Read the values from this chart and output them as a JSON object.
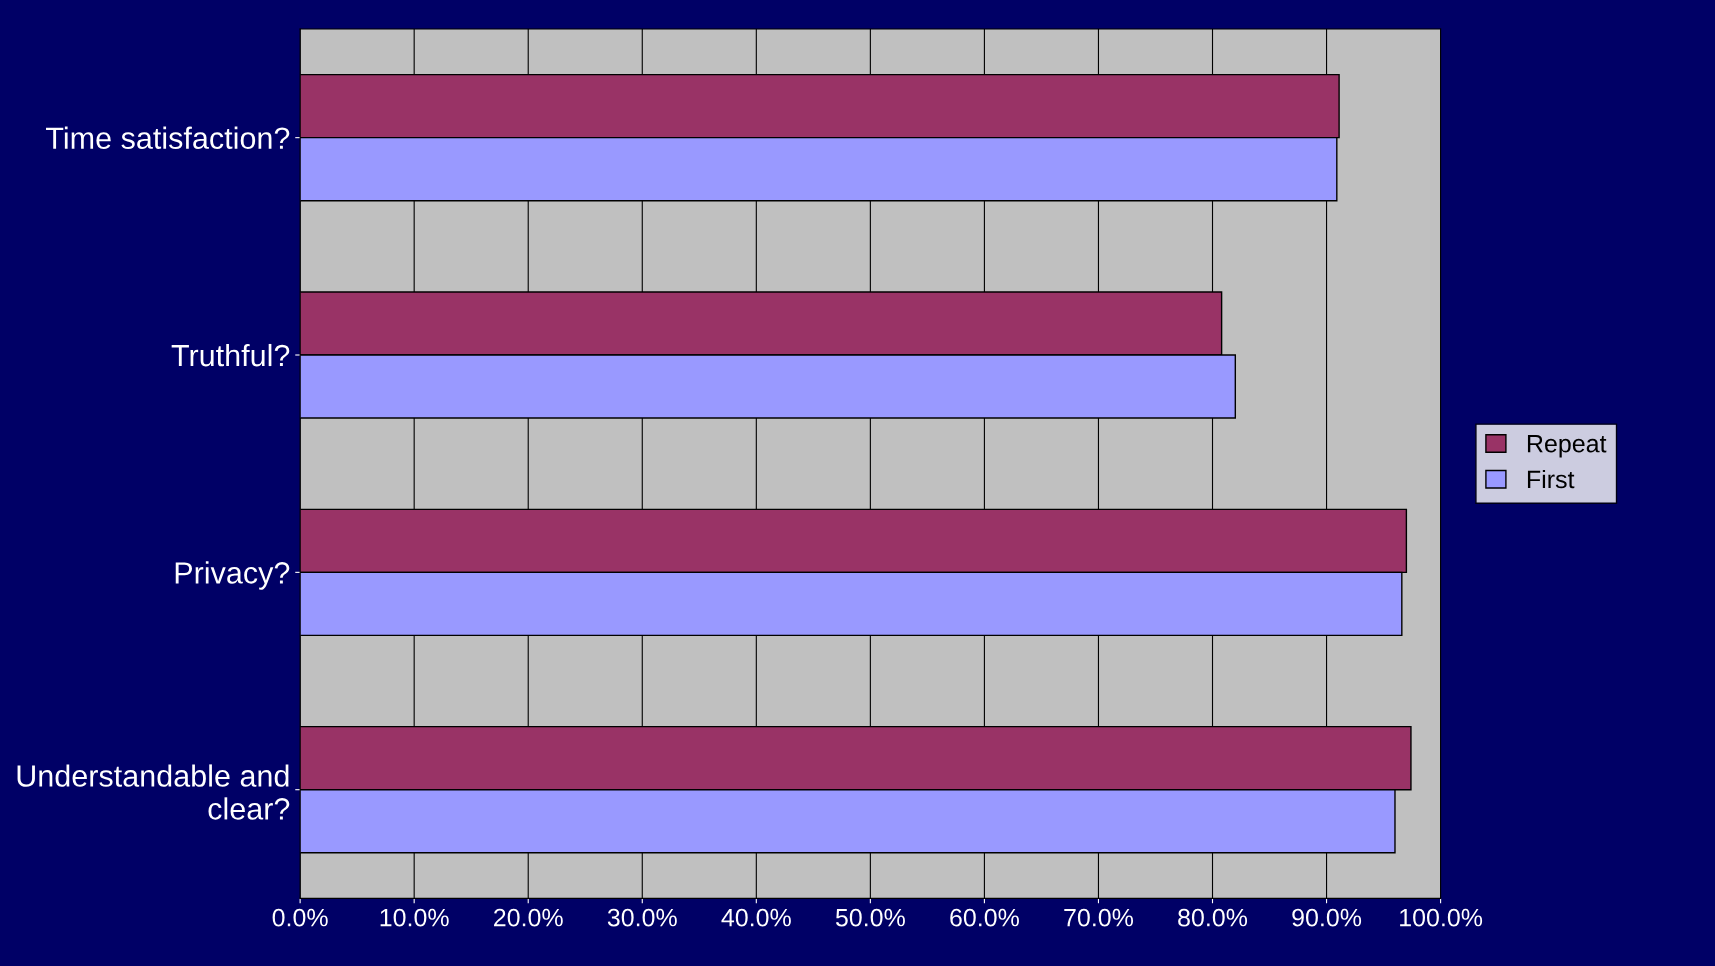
{
  "chart_data": {
    "type": "bar",
    "orientation": "horizontal",
    "categories": [
      "Time satisfaction?",
      "Truthful?",
      "Privacy?",
      "Understandable and clear?"
    ],
    "series": [
      {
        "name": "Repeat",
        "color": "#993366",
        "values": [
          91.1,
          80.8,
          97.0,
          97.4
        ]
      },
      {
        "name": "First",
        "color": "#9999ff",
        "values": [
          90.9,
          82.0,
          96.6,
          96.0
        ]
      }
    ],
    "xlim": [
      0,
      100
    ],
    "xticks": [
      {
        "value": 0,
        "label": "0.0%"
      },
      {
        "value": 10,
        "label": "10.0%"
      },
      {
        "value": 20,
        "label": "20.0%"
      },
      {
        "value": 30,
        "label": "30.0%"
      },
      {
        "value": 40,
        "label": "40.0%"
      },
      {
        "value": 50,
        "label": "50.0%"
      },
      {
        "value": 60,
        "label": "60.0%"
      },
      {
        "value": 70,
        "label": "70.0%"
      },
      {
        "value": 80,
        "label": "80.0%"
      },
      {
        "value": 90,
        "label": "90.0%"
      },
      {
        "value": 100,
        "label": "100.0%"
      }
    ],
    "grid": "x",
    "legend": "right"
  }
}
